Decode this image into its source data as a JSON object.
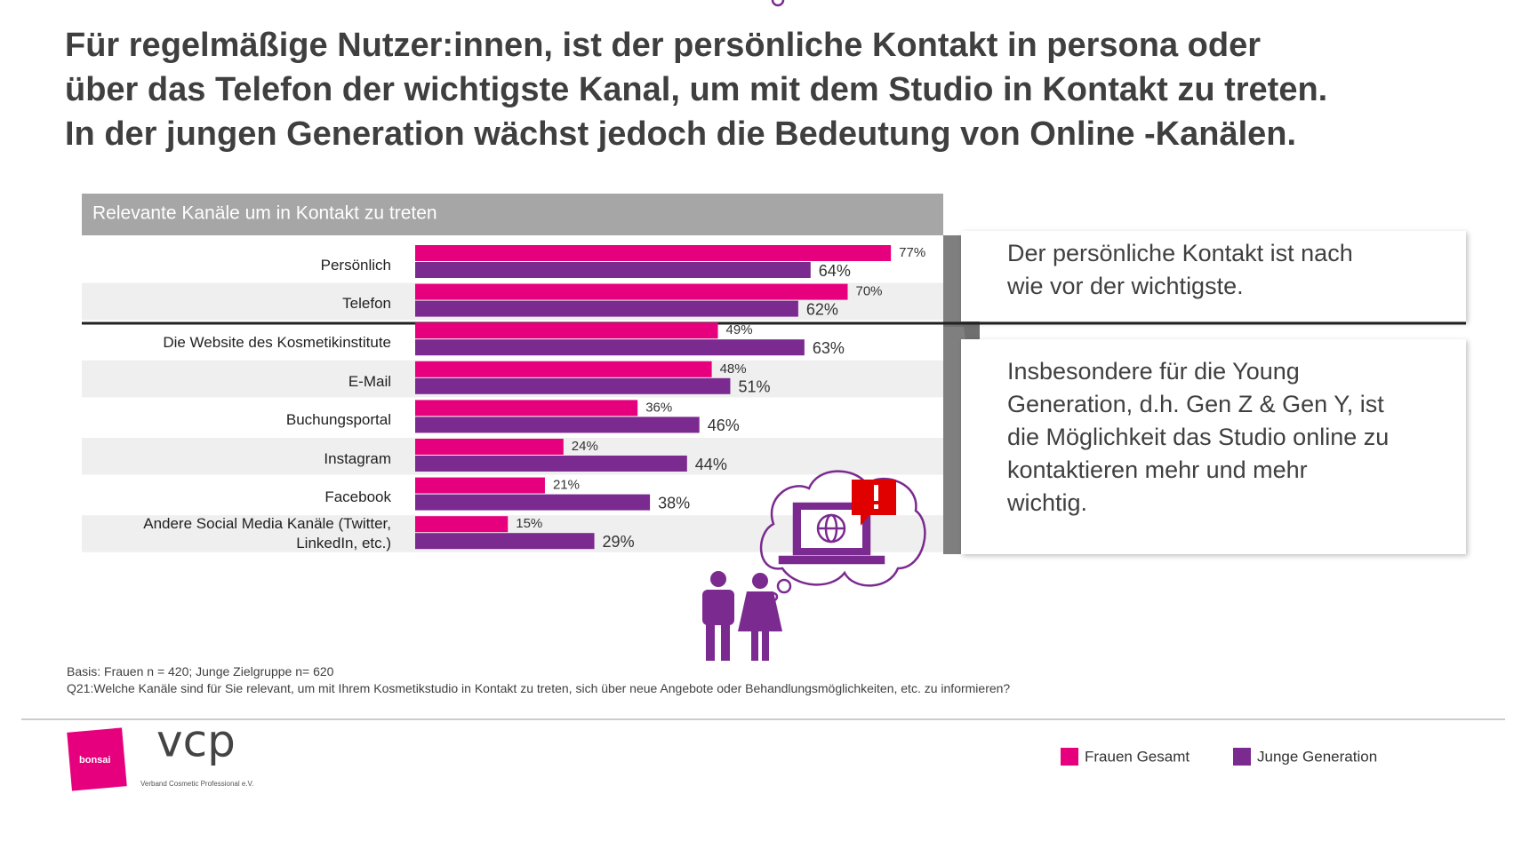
{
  "title_lines": [
    "Für regelmäßige Nutzer:innen, ist der persönliche Kontakt in persona oder",
    "über das Telefon der wichtigste Kanal, um mit dem Studio in Kontakt zu treten.",
    "In der jungen Generation wächst jedoch die Bedeutung von Online -Kanälen."
  ],
  "chart_data": {
    "type": "bar",
    "subtitle": "Relevante Kanäle um in Kontakt zu treten",
    "categories": [
      "Persönlich",
      "Telefon",
      "Die Website des Kosmetikinstitute",
      "E-Mail",
      "Buchungsportal",
      "Instagram",
      "Facebook",
      "Andere Social Media Kanäle (Twitter, LinkedIn, etc.)"
    ],
    "series": [
      {
        "name": "Frauen Gesamt",
        "color": "#e6007e",
        "values": [
          77,
          70,
          49,
          48,
          36,
          24,
          21,
          15
        ],
        "value_labels": [
          "77%",
          "70%",
          "49%",
          "48%",
          "36%",
          "24%",
          "21%",
          "15%"
        ]
      },
      {
        "name": "Junge Generation",
        "color": "#7b2a8f",
        "values": [
          64,
          62,
          63,
          51,
          46,
          44,
          38,
          29
        ],
        "value_labels": [
          "64%",
          "62%",
          "63%",
          "51%",
          "46%",
          "44%",
          "38%",
          "29%"
        ]
      }
    ]
  },
  "callouts": [
    "Der persönliche Kontakt ist nach wie vor der wichtigste.",
    "Insbesondere für die Young Generation, d.h. Gen Z & Gen Y, ist die Möglichkeit das Studio online zu kontaktieren mehr und mehr wichtig."
  ],
  "footnotes": [
    "Basis: Frauen n = 420; Junge Zielgruppe n= 620",
    "Q21:Welche Kanäle sind für Sie relevant, um mit Ihrem Kosmetikstudio in Kontakt zu treten, sich über neue Angebote oder Behandlungsmöglichkeiten, etc. zu informieren?"
  ],
  "logos": {
    "bonsai": "bonsai",
    "vcp": "vcp",
    "vcp_subtitle": "Verband Cosmetic Professional e.V."
  }
}
